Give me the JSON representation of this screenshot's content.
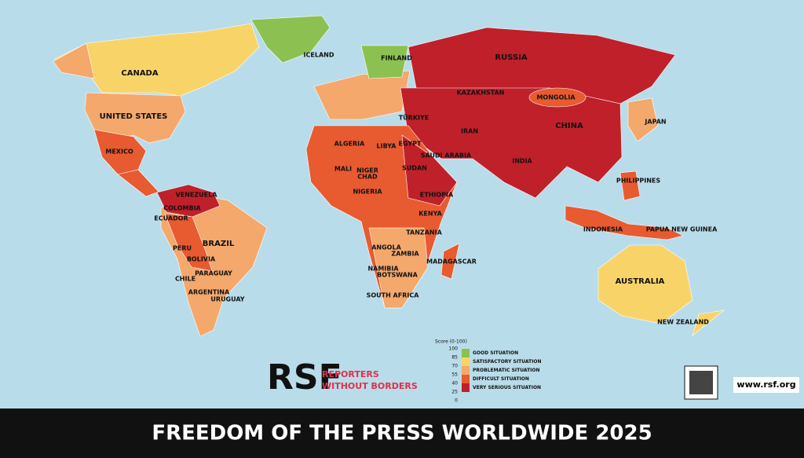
{
  "title": "FREEDOM OF THE PRESS WORLDWIDE 2025",
  "logo": {
    "mark": "RSF",
    "line1": "REPORTERS",
    "line2": "WITHOUT BORDERS"
  },
  "url": "www.rsf.org",
  "legend": {
    "title": "Score (0-100)",
    "ticks": [
      100,
      85,
      70,
      55,
      40,
      25,
      0
    ],
    "categories": [
      {
        "label": "GOOD SITUATION",
        "color": "#8cc152"
      },
      {
        "label": "SATISFACTORY SITUATION",
        "color": "#f8d468"
      },
      {
        "label": "PROBLEMATIC SITUATION",
        "color": "#f4a86c"
      },
      {
        "label": "DIFFICULT SITUATION",
        "color": "#e85a30"
      },
      {
        "label": "VERY SERIOUS SITUATION",
        "color": "#c0202a"
      }
    ]
  },
  "countries": [
    "CANADA",
    "UNITED STATES",
    "MEXICO",
    "RUSSIA",
    "CHINA",
    "KAZAKHSTAN",
    "MONGOLIA",
    "INDIA",
    "AUSTRALIA",
    "NEW ZEALAND",
    "BRAZIL",
    "ARGENTINA",
    "PERU",
    "BOLIVIA",
    "COLOMBIA",
    "VENEZUELA",
    "CHILE",
    "PARAGUAY",
    "URUGUAY",
    "ECUADOR",
    "ALGERIA",
    "LIBYA",
    "EGYPT",
    "SUDAN",
    "CHAD",
    "NIGER",
    "MALI",
    "NIGERIA",
    "ETHIOPIA",
    "KENYA",
    "TANZANIA",
    "ANGOLA",
    "ZAMBIA",
    "NAMIBIA",
    "BOTSWANA",
    "SOUTH AFRICA",
    "MADAGASCAR",
    "INDONESIA",
    "PHILIPPINES",
    "PAPUA NEW GUINEA",
    "JAPAN",
    "FINLAND",
    "ICELAND",
    "IRAN",
    "SAUDI ARABIA",
    "TÜRKIYE"
  ]
}
